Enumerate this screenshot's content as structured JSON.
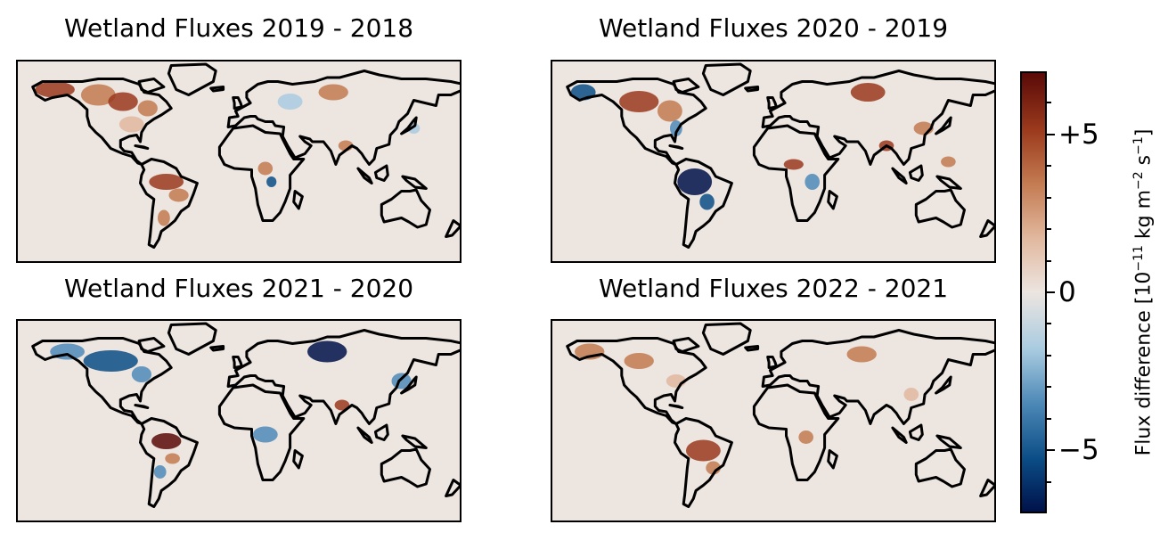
{
  "panels": [
    {
      "title": "Wetland Fluxes 2019 - 2018",
      "pattern": "positive-north-america-amazon"
    },
    {
      "title": "Wetland Fluxes 2020 - 2019",
      "pattern": "negative-amazon-positive-siberia"
    },
    {
      "title": "Wetland Fluxes 2021 - 2020",
      "pattern": "negative-canada-siberia"
    },
    {
      "title": "Wetland Fluxes 2022 - 2021",
      "pattern": "weak-positive"
    }
  ],
  "colorbar": {
    "label_main": "Flux difference [10",
    "label_exp1": "−11",
    "label_mid": " kg m",
    "label_exp2": "−2",
    "label_mid2": " s",
    "label_exp3": "−1",
    "label_end": "]",
    "ticks": [
      {
        "label": "+5",
        "value": 5
      },
      {
        "label": "0",
        "value": 0
      },
      {
        "label": "−5",
        "value": -5
      }
    ],
    "min": -7,
    "max": 7,
    "colors": [
      "#00124a",
      "#0b4d86",
      "#4f8ab8",
      "#a9cbe0",
      "#ece5e0",
      "#e2b9a0",
      "#c37a50",
      "#9b3a1d",
      "#5a0a08"
    ]
  }
}
